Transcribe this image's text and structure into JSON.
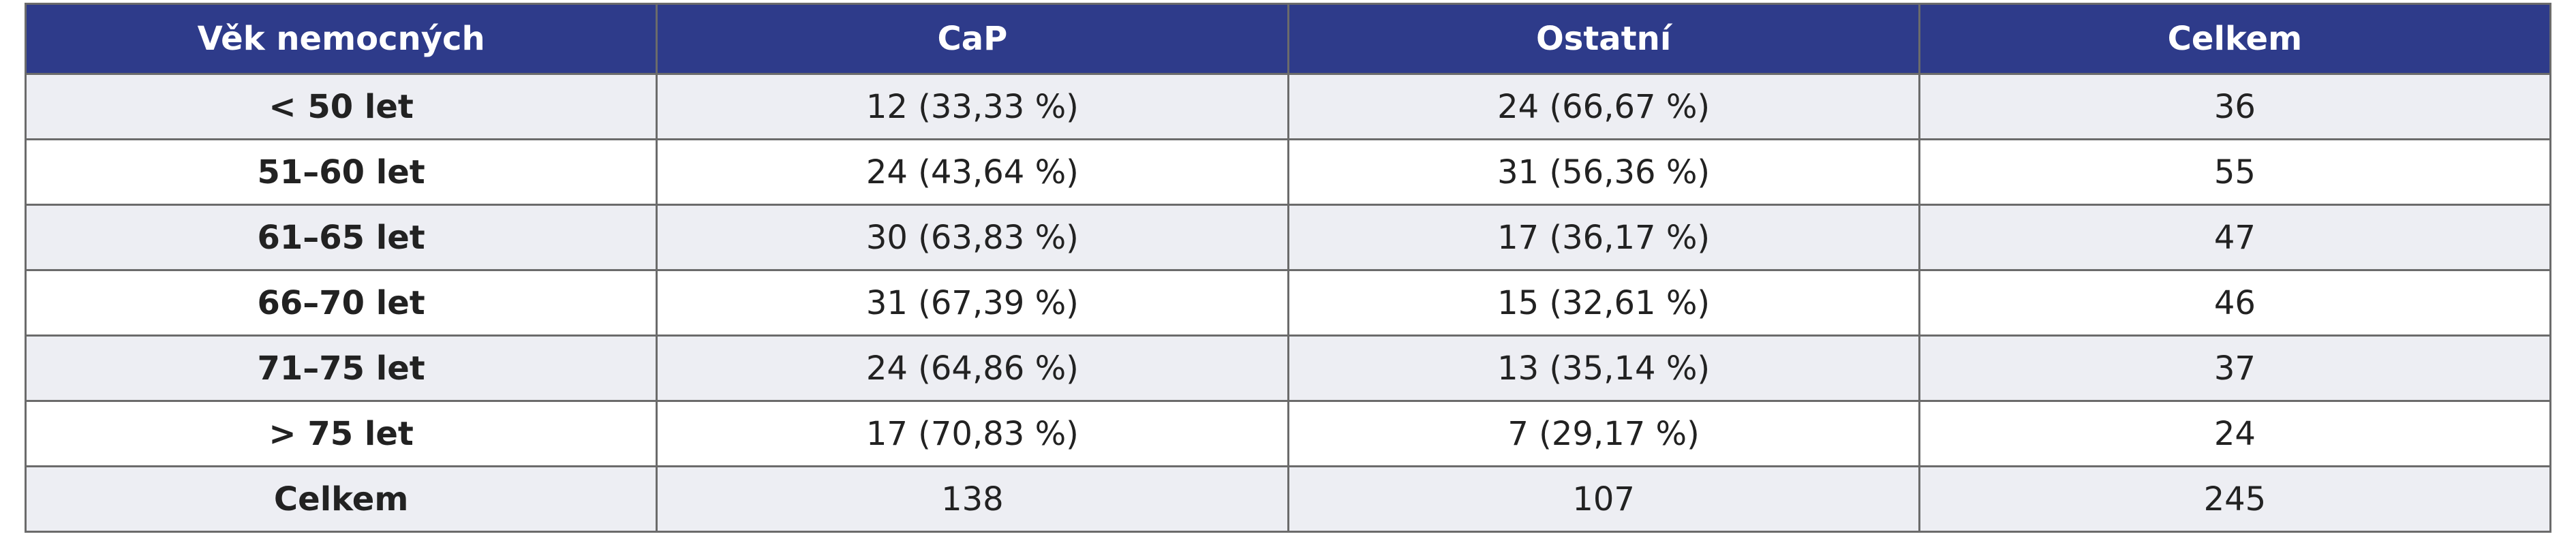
{
  "table": {
    "header": [
      "Věk nemocných",
      "CaP",
      "Ostatní",
      "Celkem"
    ],
    "rows": [
      [
        "< 50 let",
        "12 (33,33 %)",
        "24 (66,67 %)",
        "36"
      ],
      [
        "51–60 let",
        "24 (43,64 %)",
        "31 (56,36 %)",
        "55"
      ],
      [
        "61–65 let",
        "30 (63,83 %)",
        "17 (36,17 %)",
        "47"
      ],
      [
        "66–70 let",
        "31 (67,39 %)",
        "15 (32,61 %)",
        "46"
      ],
      [
        "71–75 let",
        "24 (64,86 %)",
        "13 (35,14 %)",
        "37"
      ],
      [
        "> 75 let",
        "17 (70,83 %)",
        "7 (29,17 %)",
        "24"
      ],
      [
        "Celkem",
        "138",
        "107",
        "245"
      ]
    ]
  }
}
